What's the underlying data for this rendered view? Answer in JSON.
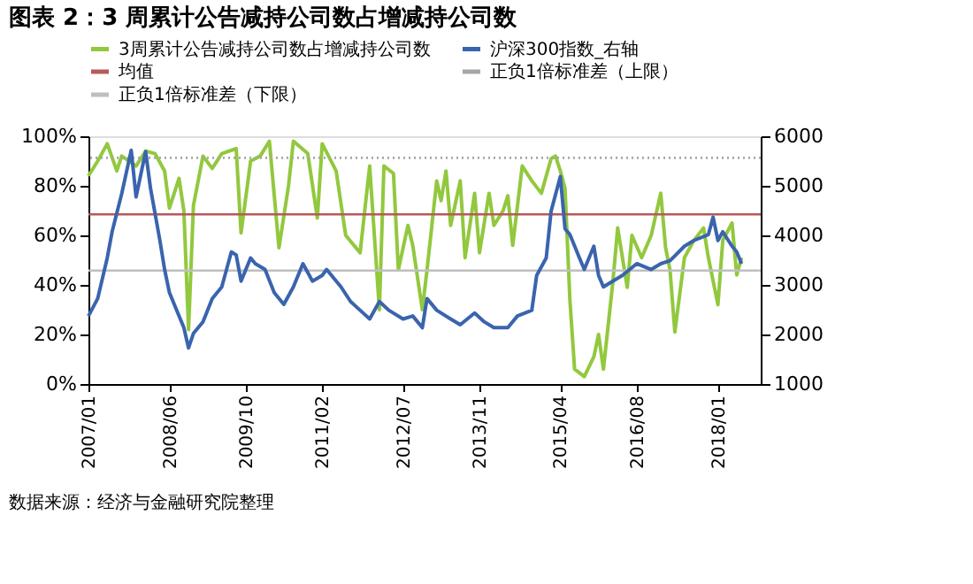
{
  "chart_data": {
    "type": "line",
    "title": "图表 2：3 周累计公告减持公司数占增减持公司数",
    "annotations": [
      "数据来源：经济与金融研究院整理"
    ],
    "xlim": [
      "2007-01",
      "2018-10"
    ],
    "xticks": [
      {
        "value": "2007-01",
        "label": "2007/01"
      },
      {
        "value": "2008-06",
        "label": "2008/06"
      },
      {
        "value": "2009-10",
        "label": "2009/10"
      },
      {
        "value": "2011-02",
        "label": "2011/02"
      },
      {
        "value": "2012-07",
        "label": "2012/07"
      },
      {
        "value": "2013-11",
        "label": "2013/11"
      },
      {
        "value": "2015-04",
        "label": "2015/04"
      },
      {
        "value": "2016-08",
        "label": "2016/08"
      },
      {
        "value": "2018-01",
        "label": "2018/01"
      }
    ],
    "ylim": [
      0,
      100
    ],
    "yticks": [
      {
        "value": 0,
        "label": "0%"
      },
      {
        "value": 20,
        "label": "20%"
      },
      {
        "value": 40,
        "label": "40%"
      },
      {
        "value": 60,
        "label": "60%"
      },
      {
        "value": 80,
        "label": "80%"
      },
      {
        "value": 100,
        "label": "100%"
      }
    ],
    "y2lim": [
      1000,
      6000
    ],
    "y2ticks": [
      1000,
      2000,
      3000,
      4000,
      5000,
      6000
    ],
    "grid": false,
    "legend": "top",
    "line_style": "solid",
    "marker": "none",
    "series": [
      {
        "name": "3周累计公告减持公司数占增减持公司数",
        "color": "#92c83e",
        "x": [
          "2007-01",
          "2007-03",
          "2007-05",
          "2007-07",
          "2007-08",
          "2007-11",
          "2008-01",
          "2008-03",
          "2008-05",
          "2008-06",
          "2008-08",
          "2008-09",
          "2008-10",
          "2008-11",
          "2009-01",
          "2009-03",
          "2009-05",
          "2009-08",
          "2009-09",
          "2009-11",
          "2010-01",
          "2010-03",
          "2010-05",
          "2010-07",
          "2010-08",
          "2010-11",
          "2011-01",
          "2011-02",
          "2011-05",
          "2011-07",
          "2011-10",
          "2011-12",
          "2012-02",
          "2012-03",
          "2012-05",
          "2012-06",
          "2012-08",
          "2012-09",
          "2012-11",
          "2012-12",
          "2013-02",
          "2013-03",
          "2013-04",
          "2013-05",
          "2013-07",
          "2013-08",
          "2013-10",
          "2013-11",
          "2014-01",
          "2014-02",
          "2014-04",
          "2014-05",
          "2014-06",
          "2014-08",
          "2014-10",
          "2014-12",
          "2015-02",
          "2015-03",
          "2015-04",
          "2015-05",
          "2015-06",
          "2015-07",
          "2015-09",
          "2015-11",
          "2015-12",
          "2016-01",
          "2016-03",
          "2016-04",
          "2016-06",
          "2016-07",
          "2016-09",
          "2016-11",
          "2017-01",
          "2017-02",
          "2017-03",
          "2017-04",
          "2017-06",
          "2017-08",
          "2017-10",
          "2017-11",
          "2018-01",
          "2018-02",
          "2018-04",
          "2018-05",
          "2018-06"
        ],
        "values": [
          84,
          90,
          97,
          86,
          92,
          88,
          94,
          93,
          86,
          71,
          83,
          70,
          22,
          72,
          92,
          87,
          93,
          95,
          61,
          90,
          92,
          98,
          55,
          80,
          98,
          93,
          67,
          97,
          86,
          60,
          53,
          88,
          30,
          88,
          85,
          46,
          64,
          56,
          30,
          46,
          82,
          74,
          86,
          64,
          82,
          51,
          77,
          53,
          77,
          64,
          70,
          76,
          56,
          88,
          82,
          77,
          91,
          92,
          86,
          79,
          34,
          6,
          3,
          11,
          20,
          6,
          41,
          63,
          39,
          60,
          51,
          60,
          77,
          55,
          46,
          21,
          51,
          58,
          63,
          51,
          32,
          58,
          65,
          44,
          51
        ]
      },
      {
        "name": "沪深300指数_右轴",
        "color": "#3a64ad",
        "axis": "y2",
        "x": [
          "2007-01",
          "2007-03",
          "2007-05",
          "2007-06",
          "2007-08",
          "2007-10",
          "2007-11",
          "2008-01",
          "2008-02",
          "2008-04",
          "2008-05",
          "2008-06",
          "2008-08",
          "2008-09",
          "2008-10",
          "2008-11",
          "2009-01",
          "2009-03",
          "2009-05",
          "2009-07",
          "2009-08",
          "2009-09",
          "2009-11",
          "2009-12",
          "2010-02",
          "2010-04",
          "2010-06",
          "2010-08",
          "2010-10",
          "2010-12",
          "2011-02",
          "2011-03",
          "2011-06",
          "2011-08",
          "2011-10",
          "2011-12",
          "2012-02",
          "2012-04",
          "2012-07",
          "2012-09",
          "2012-11",
          "2012-12",
          "2013-02",
          "2013-05",
          "2013-07",
          "2013-10",
          "2013-12",
          "2014-02",
          "2014-05",
          "2014-07",
          "2014-10",
          "2014-11",
          "2015-01",
          "2015-02",
          "2015-04",
          "2015-05",
          "2015-06",
          "2015-08",
          "2015-09",
          "2015-11",
          "2015-12",
          "2016-01",
          "2016-03",
          "2016-05",
          "2016-08",
          "2016-11",
          "2017-01",
          "2017-03",
          "2017-06",
          "2017-08",
          "2017-11",
          "2017-12",
          "2018-01",
          "2018-02",
          "2018-04",
          "2018-05",
          "2018-06"
        ],
        "values": [
          2373,
          2725,
          3545,
          4074,
          4837,
          5717,
          4777,
          5692,
          4953,
          3897,
          3312,
          2842,
          2373,
          2137,
          1728,
          2021,
          2256,
          2725,
          2960,
          3665,
          3605,
          3077,
          3545,
          3429,
          3312,
          2842,
          2608,
          2960,
          3429,
          3077,
          3193,
          3312,
          2960,
          2665,
          2489,
          2313,
          2665,
          2489,
          2313,
          2373,
          2137,
          2725,
          2489,
          2313,
          2197,
          2432,
          2256,
          2137,
          2137,
          2373,
          2489,
          3193,
          3545,
          4485,
          5189,
          4133,
          4016,
          3545,
          3312,
          3781,
          3193,
          2960,
          3077,
          3193,
          3429,
          3312,
          3429,
          3488,
          3781,
          3897,
          4016,
          4368,
          3897,
          4072,
          3781,
          3665,
          3429
        ]
      }
    ],
    "ref_lines": [
      {
        "axis": "y",
        "value": 68.5,
        "label": "均值",
        "color": "#b8595a",
        "line_style": "solid"
      },
      {
        "axis": "y",
        "value": 91.3,
        "label": "正负1倍标准差（上限）",
        "color": "#a6a6a6",
        "line_style": "dotted"
      },
      {
        "axis": "y",
        "value": 45.8,
        "label": "正负1倍标准差（下限）",
        "color": "#bfbfbf",
        "line_style": "solid"
      }
    ]
  }
}
